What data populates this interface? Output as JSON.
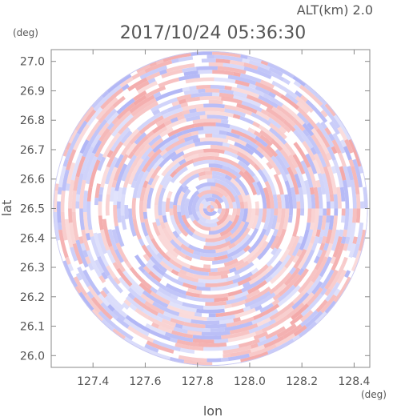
{
  "chart_data": {
    "type": "heatmap",
    "altitude_label": "ALT(km) 2.0",
    "timestamp": "2017/10/24 05:36:30",
    "xlabel": "lon",
    "ylabel": "lat",
    "x_unit": "(deg)",
    "y_unit": "(deg)",
    "xlim": [
      127.24,
      128.46
    ],
    "ylim": [
      25.96,
      27.04
    ],
    "x_ticks": [
      "127.4",
      "127.6",
      "127.8",
      "128.0",
      "128.2",
      "128.4"
    ],
    "y_ticks": [
      "27.0",
      "26.9",
      "26.8",
      "26.7",
      "26.6",
      "26.5",
      "26.4",
      "26.3",
      "26.2",
      "26.1",
      "26.0"
    ],
    "radar_center": {
      "lon": 127.85,
      "lat": 26.5
    },
    "radar_range_deg_lat": 0.535,
    "colors": {
      "positive": "#f2a0a0",
      "negative": "#a9aef5",
      "neutral": "#ffffff",
      "axis": "#888888"
    }
  }
}
